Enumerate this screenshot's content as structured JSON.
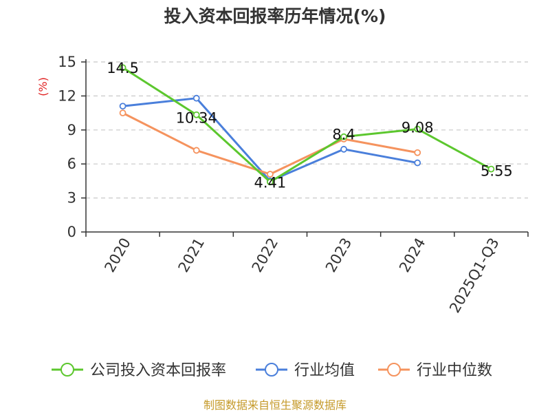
{
  "chart_data": {
    "type": "line",
    "title": "投入资本回报率历年情况(%)",
    "ylabel": "(%)",
    "xlabel": "",
    "categories": [
      "2020",
      "2021",
      "2022",
      "2023",
      "2024",
      "2025Q1-Q3"
    ],
    "ylim": [
      0,
      15
    ],
    "yticks": [
      0,
      3,
      6,
      9,
      12,
      15
    ],
    "grid": true,
    "legend_position": "bottom",
    "series": [
      {
        "name": "公司投入资本回报率",
        "color": "#5cc72e",
        "values": [
          14.5,
          10.34,
          4.41,
          8.4,
          9.08,
          5.55
        ],
        "labels": [
          "14.5",
          "10.34",
          "4.41",
          "8.4",
          "9.08",
          "5.55"
        ]
      },
      {
        "name": "行业均值",
        "color": "#4a7fdb",
        "values": [
          11.1,
          11.8,
          4.5,
          7.3,
          6.1,
          null
        ]
      },
      {
        "name": "行业中位数",
        "color": "#f5935e",
        "values": [
          10.5,
          7.2,
          5.1,
          8.2,
          7.0,
          null
        ]
      }
    ]
  },
  "footer": {
    "source": "制图数据来自恒生聚源数据库"
  }
}
